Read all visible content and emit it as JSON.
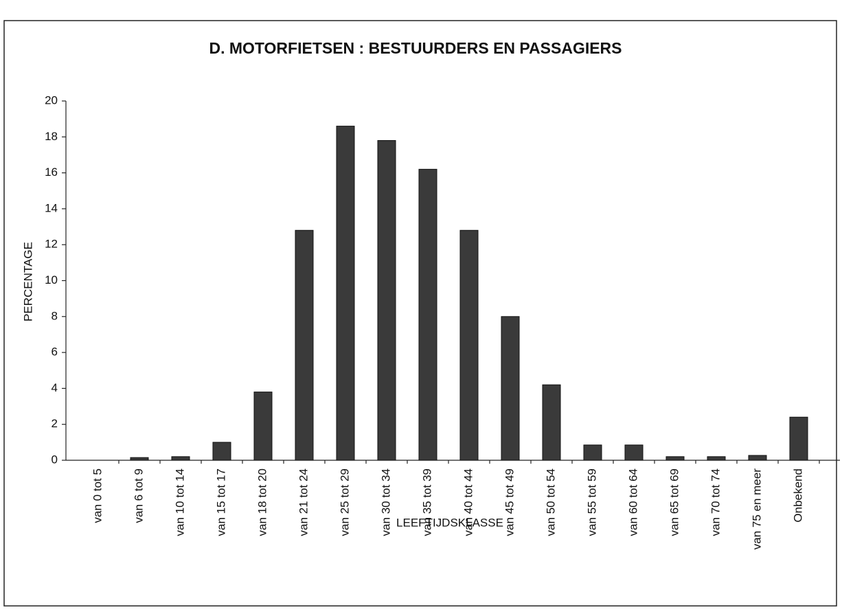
{
  "chart_data": {
    "type": "bar",
    "title": "D. MOTORFIETSEN : BESTUURDERS EN PASSAGIERS",
    "x_label": "LEEFTIJDSKLASSE",
    "y_label": "PERCENTAGE",
    "categories": [
      "van 0 tot 5",
      "van 6 tot 9",
      "van 10 tot 14",
      "van 15 tot 17",
      "van 18 tot 20",
      "van 21 tot 24",
      "van 25 tot 29",
      "van 30 tot 34",
      "van 35 tot 39",
      "van 40 tot 44",
      "van 45 tot 49",
      "van 50 tot 54",
      "van 55 tot 59",
      "van 60 tot 64",
      "van 65 tot 69",
      "van 70 tot 74",
      "van 75 en meer",
      "Onbekend"
    ],
    "values": [
      0,
      0.15,
      0.2,
      1.0,
      3.8,
      12.8,
      18.6,
      17.8,
      16.2,
      12.8,
      8.0,
      4.2,
      0.85,
      0.85,
      0.2,
      0.2,
      0.27,
      2.4
    ],
    "color": "#3a3a3a",
    "ylim": [
      0,
      20
    ],
    "yticks": [
      0,
      2,
      4,
      6,
      8,
      10,
      12,
      14,
      16,
      18,
      20
    ],
    "grid": false
  }
}
